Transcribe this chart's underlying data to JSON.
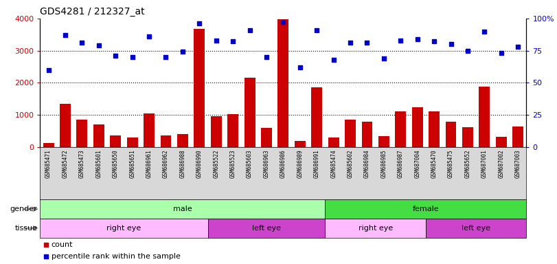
{
  "title": "GDS4281 / 212327_at",
  "samples": [
    "GSM685471",
    "GSM685472",
    "GSM685473",
    "GSM685601",
    "GSM685650",
    "GSM685651",
    "GSM686961",
    "GSM686962",
    "GSM686988",
    "GSM686990",
    "GSM685522",
    "GSM685523",
    "GSM685603",
    "GSM686963",
    "GSM686986",
    "GSM686989",
    "GSM686991",
    "GSM685474",
    "GSM685602",
    "GSM686984",
    "GSM686985",
    "GSM686987",
    "GSM687004",
    "GSM685470",
    "GSM685475",
    "GSM685652",
    "GSM687001",
    "GSM687002",
    "GSM687003"
  ],
  "counts": [
    120,
    1330,
    850,
    700,
    350,
    290,
    1030,
    350,
    400,
    3670,
    950,
    1020,
    2160,
    590,
    3970,
    180,
    1860,
    300,
    850,
    790,
    330,
    1100,
    1240,
    1100,
    790,
    620,
    1870,
    320,
    640
  ],
  "percentiles": [
    60,
    87,
    81,
    79,
    71,
    70,
    86,
    70,
    74,
    96,
    83,
    82,
    91,
    70,
    97,
    62,
    91,
    68,
    81,
    81,
    69,
    83,
    84,
    82,
    80,
    75,
    90,
    73,
    78
  ],
  "count_color": "#cc0000",
  "percentile_color": "#0000cc",
  "ylim_left": [
    0,
    4000
  ],
  "ylim_right": [
    0,
    100
  ],
  "yticks_left": [
    0,
    1000,
    2000,
    3000,
    4000
  ],
  "yticks_right": [
    0,
    25,
    50,
    75,
    100
  ],
  "ytick_labels_right": [
    "0",
    "25",
    "50",
    "75",
    "100%"
  ],
  "grid_values": [
    1000,
    2000,
    3000
  ],
  "gender_groups": [
    {
      "label": "male",
      "start": 0,
      "end": 17,
      "color": "#aaffaa"
    },
    {
      "label": "female",
      "start": 17,
      "end": 29,
      "color": "#44dd44"
    }
  ],
  "tissue_groups": [
    {
      "label": "right eye",
      "start": 0,
      "end": 10,
      "color": "#ffbbff"
    },
    {
      "label": "left eye",
      "start": 10,
      "end": 17,
      "color": "#cc44cc"
    },
    {
      "label": "right eye",
      "start": 17,
      "end": 23,
      "color": "#ffbbff"
    },
    {
      "label": "left eye",
      "start": 23,
      "end": 29,
      "color": "#cc44cc"
    }
  ],
  "legend_count": "count",
  "legend_percentile": "percentile rank within the sample",
  "bar_width": 0.65,
  "xtick_bg_color": "#d8d8d8"
}
